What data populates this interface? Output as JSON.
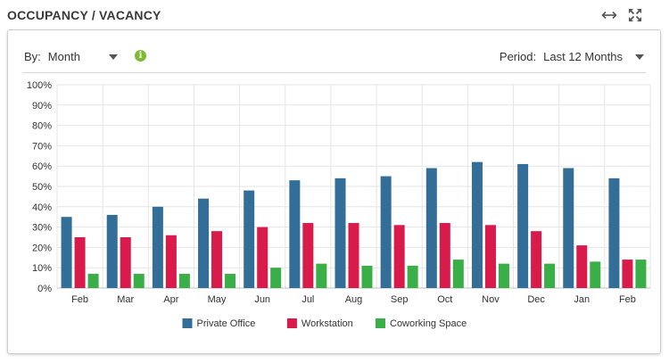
{
  "header": {
    "title": "OCCUPANCY / VACANCY",
    "icons": [
      "resize-horizontal-icon",
      "expand-icon"
    ]
  },
  "controls": {
    "by_label": "By:",
    "by_value": "Month",
    "info_icon": "info-icon",
    "period_label": "Period:",
    "period_value": "Last 12 Months"
  },
  "colors": {
    "private_office": "#336e99",
    "workstation": "#d81b4a",
    "coworking": "#3aae47",
    "grid": "#e6e6e6",
    "axis": "#c0c0c0"
  },
  "chart_data": {
    "type": "bar",
    "categories": [
      "Feb",
      "Mar",
      "Apr",
      "May",
      "Jun",
      "Jul",
      "Aug",
      "Sep",
      "Oct",
      "Nov",
      "Dec",
      "Jan",
      "Feb"
    ],
    "y_ticks": [
      "0%",
      "10%",
      "20%",
      "30%",
      "40%",
      "50%",
      "60%",
      "70%",
      "80%",
      "90%",
      "100%"
    ],
    "ylim": [
      0,
      100
    ],
    "grid": true,
    "legend_position": "bottom",
    "series": [
      {
        "name": "Private Office",
        "color": "#336e99",
        "values": [
          35,
          36,
          40,
          44,
          48,
          53,
          54,
          55,
          59,
          62,
          61,
          59,
          54
        ]
      },
      {
        "name": "Workstation",
        "color": "#d81b4a",
        "values": [
          25,
          25,
          26,
          28,
          30,
          32,
          32,
          31,
          32,
          31,
          28,
          21,
          14
        ]
      },
      {
        "name": "Coworking Space",
        "color": "#3aae47",
        "values": [
          7,
          7,
          7,
          7,
          10,
          12,
          11,
          11,
          14,
          12,
          12,
          13,
          14
        ]
      }
    ]
  }
}
